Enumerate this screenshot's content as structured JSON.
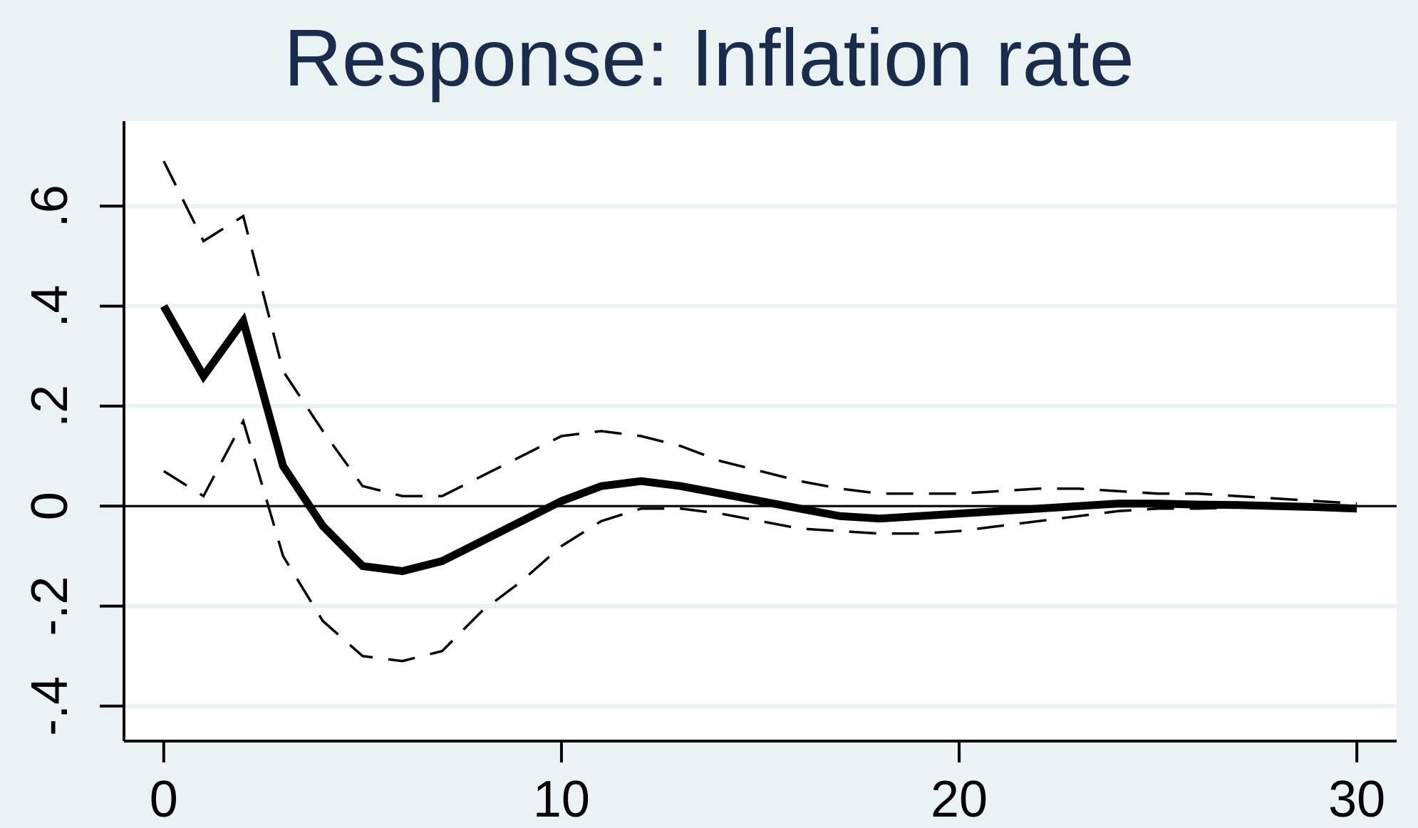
{
  "chart_data": {
    "type": "line",
    "title": "Response: Inflation rate",
    "xlabel": "",
    "ylabel": "",
    "xlim": [
      -1,
      31
    ],
    "ylim": [
      -0.47,
      0.77
    ],
    "xticks": [
      0,
      10,
      20,
      30
    ],
    "xtick_labels": [
      "0",
      "10",
      "20",
      "30"
    ],
    "yticks": [
      -0.4,
      -0.2,
      0,
      0.2,
      0.4,
      0.6
    ],
    "ytick_labels": [
      "-.4",
      "-.2",
      "0",
      ".2",
      ".4",
      ".6"
    ],
    "grid": true,
    "legend": "none",
    "reference_line_y": 0,
    "x": [
      0,
      1,
      2,
      3,
      4,
      5,
      6,
      7,
      8,
      9,
      10,
      11,
      12,
      13,
      14,
      15,
      16,
      17,
      18,
      19,
      20,
      21,
      22,
      23,
      24,
      25,
      26,
      27,
      28,
      29,
      30
    ],
    "series": [
      {
        "role": "estimate",
        "style": "solid-thick",
        "color": "#000000",
        "values": [
          0.4,
          0.26,
          0.37,
          0.08,
          -0.04,
          -0.12,
          -0.13,
          -0.11,
          -0.07,
          -0.03,
          0.01,
          0.04,
          0.05,
          0.04,
          0.025,
          0.01,
          -0.005,
          -0.02,
          -0.025,
          -0.02,
          -0.015,
          -0.01,
          -0.005,
          0.0,
          0.005,
          0.005,
          0.003,
          0.002,
          0.0,
          -0.002,
          -0.005
        ]
      },
      {
        "role": "upper-bound",
        "style": "dashed",
        "color": "#000000",
        "values": [
          0.69,
          0.53,
          0.58,
          0.27,
          0.15,
          0.04,
          0.02,
          0.02,
          0.06,
          0.1,
          0.14,
          0.15,
          0.14,
          0.12,
          0.09,
          0.07,
          0.05,
          0.035,
          0.025,
          0.025,
          0.025,
          0.03,
          0.035,
          0.035,
          0.03,
          0.025,
          0.025,
          0.02,
          0.015,
          0.01,
          0.005
        ]
      },
      {
        "role": "lower-bound",
        "style": "dashed",
        "color": "#000000",
        "values": [
          0.07,
          0.02,
          0.17,
          -0.1,
          -0.23,
          -0.3,
          -0.31,
          -0.29,
          -0.21,
          -0.15,
          -0.08,
          -0.03,
          -0.005,
          -0.005,
          -0.015,
          -0.03,
          -0.045,
          -0.05,
          -0.055,
          -0.055,
          -0.05,
          -0.04,
          -0.03,
          -0.02,
          -0.01,
          -0.005,
          -0.005,
          -0.003,
          -0.002,
          -0.002,
          -0.005
        ]
      }
    ]
  }
}
